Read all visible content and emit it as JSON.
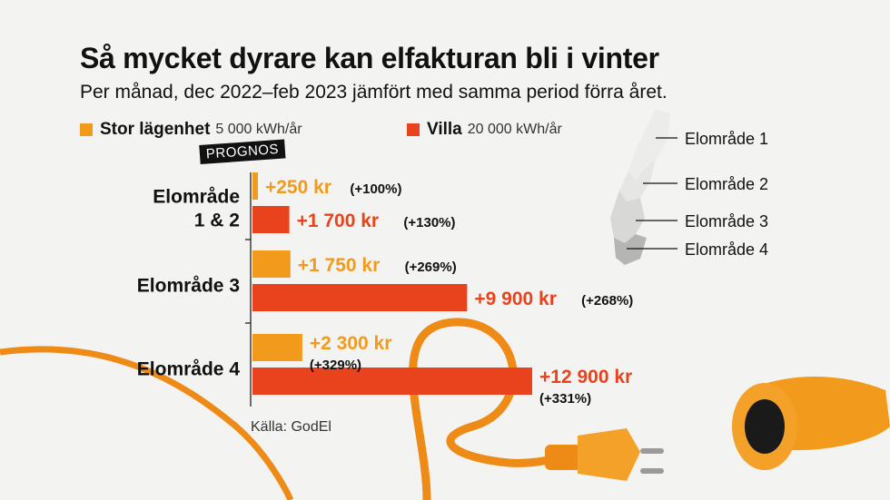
{
  "title": "Så mycket dyrare kan elfakturan bli i vinter",
  "subtitle": "Per månad, dec 2022–feb 2023 jämfört med samma period förra året.",
  "legend": [
    {
      "name": "Stor lägenhet",
      "sub": "5 000 kWh/år",
      "color": "#f29a1c"
    },
    {
      "name": "Villa",
      "sub": "20 000 kWh/år",
      "color": "#e8431c"
    }
  ],
  "prognos_label": "PROGNOS",
  "source": "Källa: GodEl",
  "map_labels": [
    "Elområde 1",
    "Elområde 2",
    "Elområde 3",
    "Elområde 4"
  ],
  "chart_data": {
    "type": "bar",
    "orientation": "horizontal",
    "categories": [
      "Elområde 1 & 2",
      "Elområde 3",
      "Elområde 4"
    ],
    "category_lines": [
      [
        "Elområde",
        "1 & 2"
      ],
      [
        "Elområde 3"
      ],
      [
        "Elområde 4"
      ]
    ],
    "series": [
      {
        "name": "Stor lägenhet",
        "color": "#f29a1c",
        "values": [
          250,
          1750,
          2300
        ],
        "labels": [
          "+250 kr",
          "+1 750 kr",
          "+2 300 kr"
        ],
        "pct": [
          "(+100%)",
          "(+269%)",
          "(+329%)"
        ]
      },
      {
        "name": "Villa",
        "color": "#e8431c",
        "values": [
          1700,
          9900,
          12900
        ],
        "labels": [
          "+1 700 kr",
          "+9 900 kr",
          "+12 900 kr"
        ],
        "pct": [
          "(+130%)",
          "(+268%)",
          "(+331%)"
        ]
      }
    ],
    "unit": "kr",
    "grid": false
  }
}
